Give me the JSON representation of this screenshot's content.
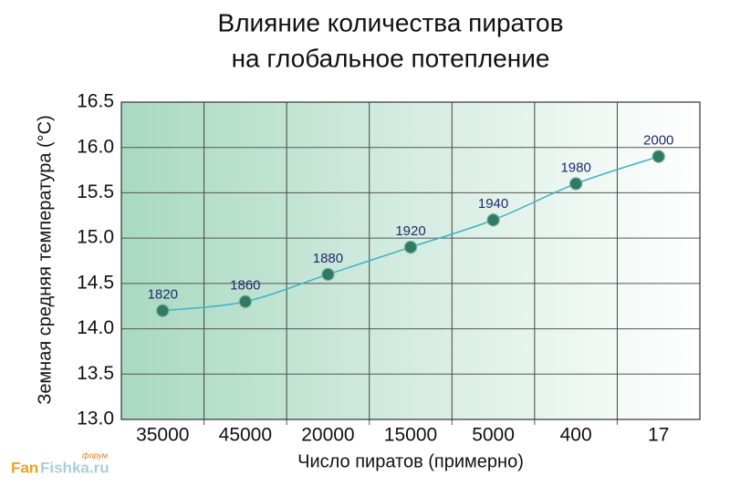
{
  "chart_data": {
    "type": "line",
    "title": [
      "Влияние количества пиратов",
      "на глобальное потепление"
    ],
    "x_label": "Число пиратов (примерно)",
    "y_label": "Земная средняя температура (°С)",
    "categories": [
      "35000",
      "45000",
      "20000",
      "15000",
      "5000",
      "400",
      "17"
    ],
    "values": [
      14.2,
      14.3,
      14.6,
      14.9,
      15.2,
      15.6,
      15.9
    ],
    "point_labels": [
      "1820",
      "1860",
      "1880",
      "1920",
      "1940",
      "1980",
      "2000"
    ],
    "line_color": "#3bb3c6",
    "marker_color": "#2f7a62",
    "ylim": [
      13.0,
      16.5
    ],
    "yticks": [
      {
        "value": 13.0,
        "label": "13.0"
      },
      {
        "value": 13.5,
        "label": "13.5"
      },
      {
        "value": 14.0,
        "label": "14.0"
      },
      {
        "value": 14.5,
        "label": "14.5"
      },
      {
        "value": 15.0,
        "label": "15.0"
      },
      {
        "value": 15.5,
        "label": "15.5"
      },
      {
        "value": 16.0,
        "label": "16.0"
      },
      {
        "value": 16.5,
        "label": "16.5"
      }
    ],
    "grid": true,
    "watermark": [
      "Fan",
      "Fishka.ru",
      "форум"
    ]
  }
}
